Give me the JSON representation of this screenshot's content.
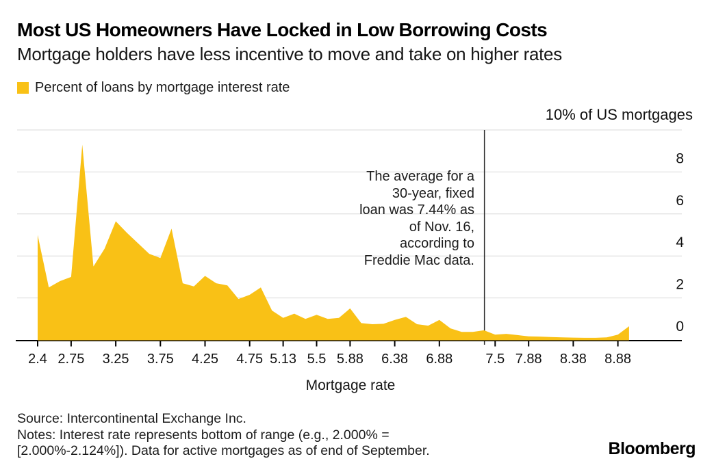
{
  "chart_data": {
    "type": "area",
    "title": "Most US Homeowners Have Locked in Low Borrowing Costs",
    "subtitle": "Mortgage holders have less incentive to move and take on higher rates",
    "legend_label": "Percent of loans by mortgage interest rate",
    "y_axis_note": "10% of US mortgages",
    "xlabel": "Mortgage rate",
    "ylabel": "",
    "ylim": [
      0,
      10
    ],
    "y_ticks": [
      0,
      2,
      4,
      6,
      8
    ],
    "grid": "horizontal",
    "series_color": "#F9C116",
    "x_start": 2.375,
    "x_step": 0.125,
    "values": [
      5.0,
      2.5,
      2.8,
      3.0,
      9.3,
      3.5,
      4.35,
      5.65,
      5.1,
      4.6,
      4.1,
      3.9,
      5.3,
      2.7,
      2.55,
      3.05,
      2.7,
      2.6,
      1.95,
      2.15,
      2.5,
      1.4,
      1.05,
      1.25,
      1.0,
      1.2,
      1.0,
      1.05,
      1.5,
      0.8,
      0.75,
      0.77,
      0.95,
      1.1,
      0.75,
      0.68,
      0.95,
      0.55,
      0.38,
      0.38,
      0.46,
      0.25,
      0.29,
      0.23,
      0.17,
      0.16,
      0.14,
      0.12,
      0.11,
      0.1,
      0.1,
      0.12,
      0.25,
      0.65
    ],
    "x_tick_labels": [
      {
        "label": "2.4",
        "rate": 2.375
      },
      {
        "label": "2.75",
        "rate": 2.75
      },
      {
        "label": "3.25",
        "rate": 3.25
      },
      {
        "label": "3.75",
        "rate": 3.75
      },
      {
        "label": "4.25",
        "rate": 4.25
      },
      {
        "label": "4.75",
        "rate": 4.75
      },
      {
        "label": "5.13",
        "rate": 5.125
      },
      {
        "label": "5.5",
        "rate": 5.5
      },
      {
        "label": "5.88",
        "rate": 5.875
      },
      {
        "label": "6.38",
        "rate": 6.375
      },
      {
        "label": "6.88",
        "rate": 6.875
      },
      {
        "label": "7.5",
        "rate": 7.5
      },
      {
        "label": "7.88",
        "rate": 7.875
      },
      {
        "label": "8.38",
        "rate": 8.375
      },
      {
        "label": "8.88",
        "rate": 8.875
      }
    ],
    "annotation": {
      "text": "The average for a\n30-year, fixed\nloan was 7.44% as\nof Nov. 16,\naccording to\nFreddie Mac data.",
      "line_rate": 7.38
    },
    "source": "Source: Intercontinental Exchange Inc.",
    "notes": "Notes: Interest rate represents bottom of range (e.g., 2.000% =\n[2.000%-2.124%]). Data for active mortgages as of end of September.",
    "brand": "Bloomberg"
  }
}
